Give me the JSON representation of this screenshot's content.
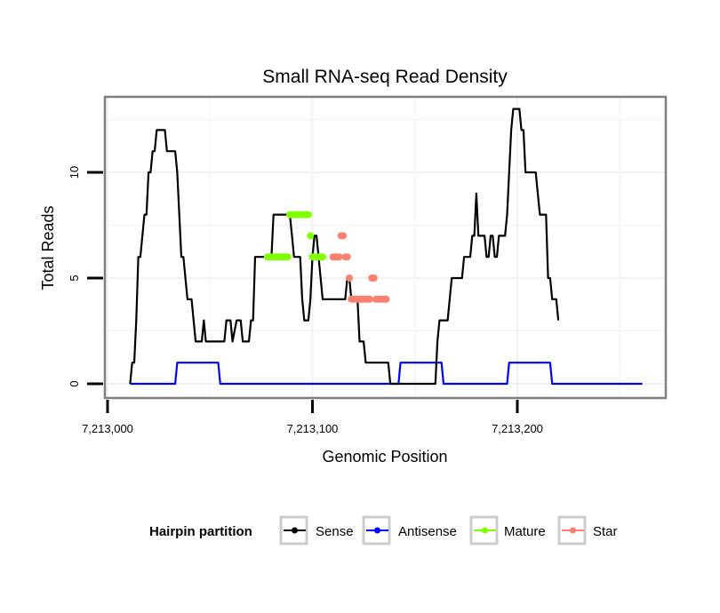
{
  "chart_data": {
    "type": "line",
    "title": "Small RNA-seq Read Density",
    "xlabel": "Genomic Position",
    "ylabel": "Total Reads",
    "xlim": [
      7212998,
      7213273
    ],
    "ylim": [
      -0.7,
      13.5
    ],
    "x_ticks": [
      7213000,
      7213100,
      7213200
    ],
    "x_tick_labels": [
      "7,213,000",
      "7,213,100",
      "7,213,200"
    ],
    "y_ticks": [
      0,
      5,
      10
    ],
    "y_tick_labels": [
      "0",
      "5",
      "10"
    ],
    "grid": true,
    "legend": {
      "title": "Hairpin partition",
      "position": "bottom",
      "entries": [
        {
          "name": "Sense",
          "color": "#000000"
        },
        {
          "name": "Antisense",
          "color": "#0000ff"
        },
        {
          "name": "Mature",
          "color": "#7fff00"
        },
        {
          "name": "Star",
          "color": "#fa8072"
        }
      ]
    },
    "series": [
      {
        "name": "Sense",
        "color": "#000000",
        "points": [
          [
            7213011,
            0
          ],
          [
            7213012,
            1
          ],
          [
            7213013,
            1
          ],
          [
            7213014,
            3
          ],
          [
            7213015,
            6
          ],
          [
            7213016,
            6
          ],
          [
            7213018,
            8
          ],
          [
            7213019,
            8
          ],
          [
            7213020,
            10
          ],
          [
            7213021,
            10
          ],
          [
            7213022,
            11
          ],
          [
            7213023,
            11
          ],
          [
            7213024,
            12
          ],
          [
            7213028,
            12
          ],
          [
            7213029,
            11
          ],
          [
            7213033,
            11
          ],
          [
            7213034,
            10
          ],
          [
            7213036,
            6
          ],
          [
            7213037,
            6
          ],
          [
            7213039,
            4
          ],
          [
            7213041,
            4
          ],
          [
            7213043,
            2
          ],
          [
            7213046,
            2
          ],
          [
            7213047,
            3
          ],
          [
            7213048,
            2
          ],
          [
            7213057,
            2
          ],
          [
            7213058,
            3
          ],
          [
            7213060,
            3
          ],
          [
            7213061,
            2
          ],
          [
            7213063,
            3
          ],
          [
            7213065,
            3
          ],
          [
            7213066,
            2
          ],
          [
            7213069,
            2
          ],
          [
            7213070,
            3
          ],
          [
            7213071,
            3
          ],
          [
            7213072,
            6
          ],
          [
            7213080,
            6
          ],
          [
            7213081,
            8
          ],
          [
            7213089,
            8
          ],
          [
            7213090,
            7
          ],
          [
            7213091,
            6
          ],
          [
            7213094,
            6
          ],
          [
            7213095,
            4
          ],
          [
            7213096,
            3
          ],
          [
            7213098,
            3
          ],
          [
            7213099,
            4
          ],
          [
            7213100,
            6
          ],
          [
            7213101,
            7
          ],
          [
            7213102,
            7
          ],
          [
            7213103,
            6
          ],
          [
            7213104,
            5
          ],
          [
            7213105,
            4
          ],
          [
            7213116,
            4
          ],
          [
            7213117,
            5
          ],
          [
            7213118,
            5
          ],
          [
            7213119,
            4
          ],
          [
            7213122,
            4
          ],
          [
            7213123,
            2
          ],
          [
            7213125,
            2
          ],
          [
            7213126,
            1
          ],
          [
            7213137,
            1
          ],
          [
            7213138,
            0
          ],
          [
            7213160,
            0
          ],
          [
            7213161,
            2
          ],
          [
            7213162,
            3
          ],
          [
            7213166,
            3
          ],
          [
            7213167,
            4
          ],
          [
            7213168,
            5
          ],
          [
            7213173,
            5
          ],
          [
            7213174,
            6
          ],
          [
            7213177,
            6
          ],
          [
            7213178,
            7
          ],
          [
            7213179,
            7
          ],
          [
            7213180,
            9
          ],
          [
            7213181,
            7
          ],
          [
            7213184,
            7
          ],
          [
            7213185,
            6
          ],
          [
            7213186,
            6
          ],
          [
            7213187,
            7
          ],
          [
            7213188,
            7
          ],
          [
            7213189,
            6
          ],
          [
            7213190,
            6
          ],
          [
            7213191,
            7
          ],
          [
            7213194,
            7
          ],
          [
            7213195,
            8
          ],
          [
            7213196,
            10
          ],
          [
            7213197,
            12
          ],
          [
            7213198,
            13
          ],
          [
            7213201,
            13
          ],
          [
            7213202,
            12
          ],
          [
            7213203,
            12
          ],
          [
            7213204,
            10
          ],
          [
            7213209,
            10
          ],
          [
            7213210,
            9
          ],
          [
            7213211,
            8
          ],
          [
            7213214,
            8
          ],
          [
            7213215,
            5
          ],
          [
            7213216,
            5
          ],
          [
            7213217,
            4
          ],
          [
            7213219,
            4
          ],
          [
            7213220,
            3
          ]
        ]
      },
      {
        "name": "Antisense",
        "color": "#0000ff",
        "points": [
          [
            7213011,
            0
          ],
          [
            7213033,
            0
          ],
          [
            7213034,
            1
          ],
          [
            7213054,
            1
          ],
          [
            7213055,
            0
          ],
          [
            7213142,
            0
          ],
          [
            7213143,
            1
          ],
          [
            7213163,
            1
          ],
          [
            7213164,
            0
          ],
          [
            7213195,
            0
          ],
          [
            7213196,
            1
          ],
          [
            7213216,
            1
          ],
          [
            7213217,
            0
          ],
          [
            7213261,
            0
          ]
        ]
      },
      {
        "name": "Mature",
        "color": "#7fff00",
        "points": [
          [
            7213078,
            6
          ],
          [
            7213079,
            6
          ],
          [
            7213080,
            6
          ],
          [
            7213081,
            6
          ],
          [
            7213082,
            6
          ],
          [
            7213083,
            6
          ],
          [
            7213084,
            6
          ],
          [
            7213085,
            6
          ],
          [
            7213086,
            6
          ],
          [
            7213087,
            6
          ],
          [
            7213088,
            6
          ],
          [
            7213089,
            8
          ],
          [
            7213090,
            8
          ],
          [
            7213091,
            8
          ],
          [
            7213092,
            8
          ],
          [
            7213093,
            8
          ],
          [
            7213094,
            8
          ],
          [
            7213095,
            8
          ],
          [
            7213096,
            8
          ],
          [
            7213097,
            8
          ],
          [
            7213098,
            8
          ],
          [
            7213099,
            7
          ],
          [
            7213100,
            6
          ],
          [
            7213101,
            6
          ],
          [
            7213102,
            6
          ],
          [
            7213103,
            6
          ],
          [
            7213104,
            6
          ],
          [
            7213105,
            6
          ]
        ]
      },
      {
        "name": "Star",
        "color": "#fa8072",
        "points": [
          [
            7213110,
            6
          ],
          [
            7213111,
            6
          ],
          [
            7213112,
            6
          ],
          [
            7213113,
            6
          ],
          [
            7213114,
            7
          ],
          [
            7213115,
            7
          ],
          [
            7213116,
            6
          ],
          [
            7213117,
            6
          ],
          [
            7213118,
            5
          ],
          [
            7213119,
            4
          ],
          [
            7213120,
            4
          ],
          [
            7213121,
            4
          ],
          [
            7213122,
            4
          ],
          [
            7213123,
            4
          ],
          [
            7213124,
            4
          ],
          [
            7213125,
            4
          ],
          [
            7213126,
            4
          ],
          [
            7213127,
            4
          ],
          [
            7213128,
            4
          ],
          [
            7213129,
            5
          ],
          [
            7213130,
            5
          ],
          [
            7213131,
            4
          ],
          [
            7213132,
            4
          ],
          [
            7213133,
            4
          ],
          [
            7213134,
            4
          ],
          [
            7213135,
            4
          ],
          [
            7213136,
            4
          ]
        ]
      }
    ]
  }
}
